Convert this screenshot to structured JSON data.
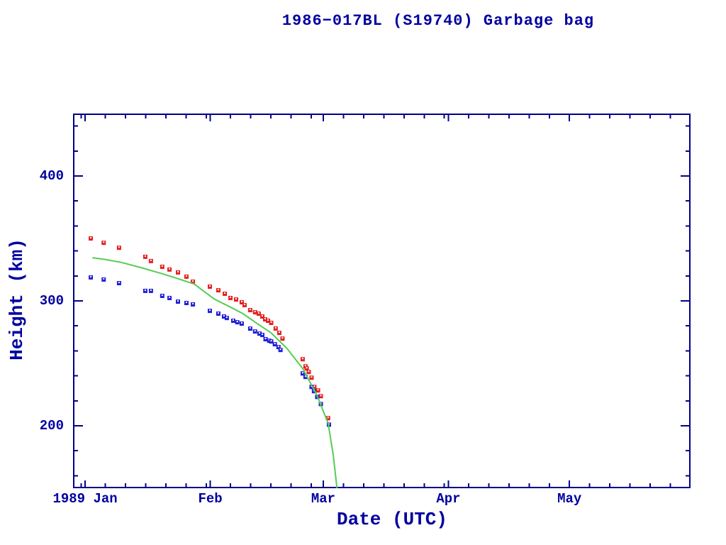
{
  "title": "1986−017BL (S19740) Garbage bag",
  "chart_data": {
    "type": "scatter",
    "title": "1986−017BL (S19740) Garbage bag",
    "xlabel": "Date (UTC)",
    "ylabel": "Height (km)",
    "legend": "none",
    "grid": false,
    "frame_color": "#000088",
    "text_color": "#0000a0",
    "x_axis": {
      "units": "days since 1989-01-01",
      "domain_days": [
        -3,
        150
      ],
      "major_ticks": [
        {
          "day": 0,
          "label": "1989 Jan"
        },
        {
          "day": 31,
          "label": "Feb"
        },
        {
          "day": 59,
          "label": "Mar"
        },
        {
          "day": 90,
          "label": "Apr"
        },
        {
          "day": 120,
          "label": "May"
        }
      ],
      "minor_tick_days": [
        -1,
        5,
        10,
        15,
        20,
        25,
        30,
        36,
        41,
        46,
        51,
        56,
        64,
        69,
        74,
        79,
        84,
        89,
        95,
        100,
        105,
        110,
        115,
        125,
        130,
        135,
        140,
        145
      ]
    },
    "y_axis": {
      "units": "km",
      "domain_km": [
        150,
        450
      ],
      "major_ticks": [
        {
          "km": 200,
          "label": "200"
        },
        {
          "km": 300,
          "label": "300"
        },
        {
          "km": 400,
          "label": "400"
        }
      ],
      "minor_tick_km": [
        160,
        180,
        220,
        240,
        260,
        280,
        320,
        340,
        360,
        380,
        420,
        440
      ]
    },
    "series": [
      {
        "name": "red-squares",
        "type": "scatter",
        "marker": "filled-square-white-dot",
        "color": "#e62020",
        "points": [
          [
            1.4,
            350.0
          ],
          [
            4.6,
            346.5
          ],
          [
            8.4,
            342.5
          ],
          [
            14.9,
            335.3
          ],
          [
            16.3,
            331.9
          ],
          [
            19.1,
            327.3
          ],
          [
            20.9,
            325.1
          ],
          [
            23.0,
            322.8
          ],
          [
            25.1,
            319.4
          ],
          [
            26.7,
            315.4
          ],
          [
            30.9,
            311.4
          ],
          [
            33.0,
            308.5
          ],
          [
            34.6,
            305.7
          ],
          [
            36.0,
            302.3
          ],
          [
            37.4,
            301.1
          ],
          [
            38.8,
            298.9
          ],
          [
            39.5,
            296.6
          ],
          [
            40.9,
            292.6
          ],
          [
            42.1,
            290.9
          ],
          [
            43.0,
            289.8
          ],
          [
            43.9,
            287.5
          ],
          [
            44.6,
            285.2
          ],
          [
            45.3,
            284.1
          ],
          [
            46.1,
            282.4
          ],
          [
            47.2,
            277.9
          ],
          [
            48.1,
            274.4
          ],
          [
            48.9,
            269.8
          ],
          [
            53.9,
            253.3
          ],
          [
            54.6,
            247.6
          ],
          [
            54.9,
            245.9
          ],
          [
            55.4,
            243.1
          ],
          [
            56.1,
            238.5
          ],
          [
            56.8,
            231.1
          ],
          [
            57.7,
            228.3
          ],
          [
            58.4,
            223.7
          ],
          [
            60.2,
            206.1
          ]
        ]
      },
      {
        "name": "blue-squares",
        "type": "scatter",
        "marker": "filled-square-white-dot",
        "color": "#2020d8",
        "points": [
          [
            1.4,
            318.8
          ],
          [
            4.6,
            317.1
          ],
          [
            8.4,
            314.2
          ],
          [
            14.9,
            308.0
          ],
          [
            16.3,
            308.0
          ],
          [
            19.1,
            304.0
          ],
          [
            20.9,
            302.3
          ],
          [
            23.0,
            299.4
          ],
          [
            25.1,
            298.3
          ],
          [
            26.7,
            297.2
          ],
          [
            30.9,
            292.0
          ],
          [
            33.0,
            289.8
          ],
          [
            34.4,
            287.5
          ],
          [
            35.1,
            286.3
          ],
          [
            36.7,
            284.1
          ],
          [
            37.7,
            282.9
          ],
          [
            38.8,
            281.8
          ],
          [
            40.9,
            277.8
          ],
          [
            42.1,
            275.5
          ],
          [
            43.2,
            273.8
          ],
          [
            43.9,
            272.7
          ],
          [
            44.7,
            269.3
          ],
          [
            45.6,
            268.1
          ],
          [
            46.1,
            267.5
          ],
          [
            47.0,
            265.3
          ],
          [
            47.9,
            263.0
          ],
          [
            48.4,
            260.7
          ],
          [
            53.9,
            241.9
          ],
          [
            54.6,
            239.1
          ],
          [
            56.1,
            231.1
          ],
          [
            56.7,
            227.7
          ],
          [
            57.5,
            223.1
          ],
          [
            58.4,
            217.4
          ],
          [
            60.4,
            200.9
          ]
        ]
      },
      {
        "name": "green-line",
        "type": "line",
        "color": "#55cc55",
        "points": [
          [
            1.8,
            334.5
          ],
          [
            5.0,
            333.2
          ],
          [
            9.0,
            330.8
          ],
          [
            14.0,
            326.5
          ],
          [
            19.0,
            321.8
          ],
          [
            23.0,
            317.8
          ],
          [
            27.0,
            313.5
          ],
          [
            32.0,
            301.5
          ],
          [
            36.0,
            295.0
          ],
          [
            39.1,
            289.8
          ],
          [
            43.0,
            281.0
          ],
          [
            46.1,
            274.4
          ],
          [
            50.0,
            262.0
          ],
          [
            53.9,
            245.9
          ],
          [
            57.4,
            224.8
          ],
          [
            60.2,
            202.0
          ],
          [
            61.5,
            176.0
          ],
          [
            62.4,
            150.0
          ]
        ]
      }
    ]
  }
}
